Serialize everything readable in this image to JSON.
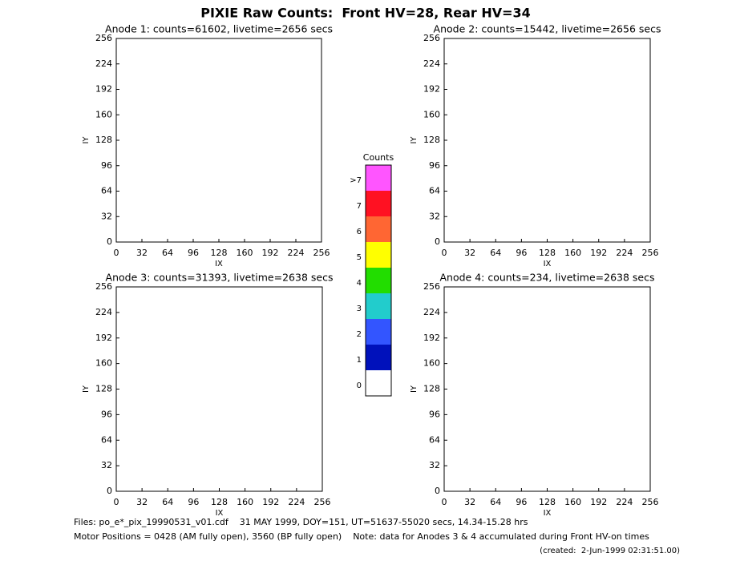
{
  "title": "PIXIE Raw Counts:  Front HV=28, Rear HV=34",
  "chart_data": [
    {
      "type": "heatmap",
      "title": "Anode 1: counts=61602, livetime=2656 secs",
      "xlabel": "IX",
      "ylabel": "IY",
      "xlim": [
        0,
        256
      ],
      "ylim": [
        0,
        256
      ],
      "xticks": [
        0,
        32,
        64,
        96,
        128,
        160,
        192,
        224,
        256
      ],
      "yticks": [
        0,
        32,
        64,
        96,
        128,
        160,
        192,
        224,
        256
      ]
    },
    {
      "type": "heatmap",
      "title": "Anode 2: counts=15442, livetime=2656 secs",
      "xlabel": "IX",
      "ylabel": "IY",
      "xlim": [
        0,
        256
      ],
      "ylim": [
        0,
        256
      ],
      "xticks": [
        0,
        32,
        64,
        96,
        128,
        160,
        192,
        224,
        256
      ],
      "yticks": [
        0,
        32,
        64,
        96,
        128,
        160,
        192,
        224,
        256
      ]
    },
    {
      "type": "heatmap",
      "title": "Anode 3: counts=31393, livetime=2638 secs",
      "xlabel": "IX",
      "ylabel": "IY",
      "xlim": [
        0,
        256
      ],
      "ylim": [
        0,
        256
      ],
      "xticks": [
        0,
        32,
        64,
        96,
        128,
        160,
        192,
        224,
        256
      ],
      "yticks": [
        0,
        32,
        64,
        96,
        128,
        160,
        192,
        224,
        256
      ]
    },
    {
      "type": "heatmap",
      "title": "Anode 4: counts=234, livetime=2638 secs",
      "xlabel": "IX",
      "ylabel": "IY",
      "xlim": [
        0,
        256
      ],
      "ylim": [
        0,
        256
      ],
      "xticks": [
        0,
        32,
        64,
        96,
        128,
        160,
        192,
        224,
        256
      ],
      "yticks": [
        0,
        32,
        64,
        96,
        128,
        160,
        192,
        224,
        256
      ]
    }
  ],
  "colorbar": {
    "title": "Counts",
    "levels": [
      {
        "label": ">7",
        "color": "#ff55ff"
      },
      {
        "label": "7",
        "color": "#ff1122"
      },
      {
        "label": "6",
        "color": "#ff6633"
      },
      {
        "label": "5",
        "color": "#ffff00"
      },
      {
        "label": "4",
        "color": "#22dd00"
      },
      {
        "label": "3",
        "color": "#22cccc"
      },
      {
        "label": "2",
        "color": "#3355ff"
      },
      {
        "label": "1",
        "color": "#0011bb"
      },
      {
        "label": "0",
        "color": "#ffffff"
      }
    ]
  },
  "footer": [
    "Files: po_e*_pix_19990531_v01.cdf    31 MAY 1999, DOY=151, UT=51637-55020 secs, 14.34-15.28 hrs",
    "Motor Positions = 0428 (AM fully open), 3560 (BP fully open)    Note: data for Anodes 3 & 4 accumulated during Front HV-on times",
    "(created:  2-Jun-1999 02:31:51.00)"
  ]
}
